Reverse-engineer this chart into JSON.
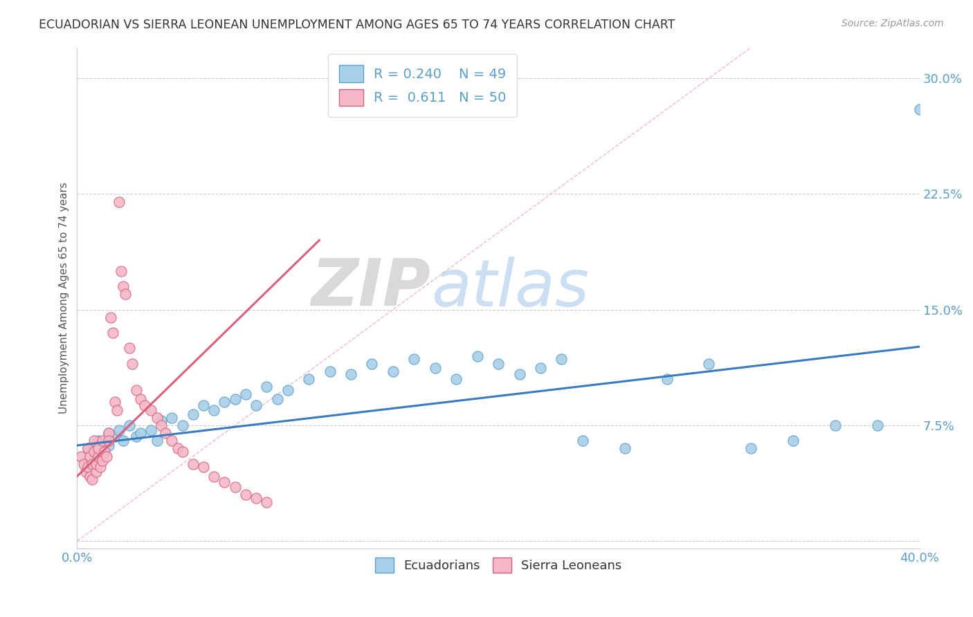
{
  "title": "ECUADORIAN VS SIERRA LEONEAN UNEMPLOYMENT AMONG AGES 65 TO 74 YEARS CORRELATION CHART",
  "source": "Source: ZipAtlas.com",
  "ylabel": "Unemployment Among Ages 65 to 74 years",
  "xlim": [
    0.0,
    0.4
  ],
  "ylim": [
    -0.005,
    0.32
  ],
  "yticks": [
    0.0,
    0.075,
    0.15,
    0.225,
    0.3
  ],
  "yticklabels": [
    "",
    "7.5%",
    "15.0%",
    "22.5%",
    "30.0%"
  ],
  "watermark_zip": "ZIP",
  "watermark_atlas": "atlas",
  "legend_r1": "R = 0.240",
  "legend_n1": "N = 49",
  "legend_r2": "R =  0.611",
  "legend_n2": "N = 50",
  "blue_color": "#a8cfe8",
  "blue_edge": "#5a9ec9",
  "pink_color": "#f4b8c8",
  "pink_edge": "#d9607a",
  "trend_blue": "#3a7abf",
  "trend_pink": "#d9607a",
  "ref_line_color": "#f4b8c8",
  "background_color": "#ffffff",
  "title_color": "#333333",
  "axis_label_color": "#5a9ec9",
  "blue_scatter_x": [
    0.005,
    0.008,
    0.01,
    0.012,
    0.015,
    0.015,
    0.018,
    0.02,
    0.022,
    0.025,
    0.028,
    0.03,
    0.035,
    0.038,
    0.04,
    0.045,
    0.05,
    0.055,
    0.06,
    0.065,
    0.07,
    0.075,
    0.08,
    0.085,
    0.09,
    0.095,
    0.1,
    0.11,
    0.12,
    0.13,
    0.14,
    0.15,
    0.16,
    0.17,
    0.18,
    0.19,
    0.2,
    0.21,
    0.22,
    0.23,
    0.24,
    0.26,
    0.28,
    0.3,
    0.32,
    0.34,
    0.36,
    0.38,
    0.4
  ],
  "blue_scatter_y": [
    0.06,
    0.055,
    0.065,
    0.058,
    0.062,
    0.07,
    0.068,
    0.072,
    0.065,
    0.075,
    0.068,
    0.07,
    0.072,
    0.065,
    0.078,
    0.08,
    0.075,
    0.082,
    0.088,
    0.085,
    0.09,
    0.092,
    0.095,
    0.088,
    0.1,
    0.092,
    0.098,
    0.105,
    0.11,
    0.108,
    0.115,
    0.11,
    0.118,
    0.112,
    0.105,
    0.12,
    0.115,
    0.108,
    0.112,
    0.118,
    0.065,
    0.06,
    0.105,
    0.115,
    0.06,
    0.065,
    0.075,
    0.075,
    0.28
  ],
  "pink_scatter_x": [
    0.002,
    0.003,
    0.004,
    0.005,
    0.005,
    0.006,
    0.006,
    0.007,
    0.007,
    0.008,
    0.008,
    0.009,
    0.009,
    0.01,
    0.01,
    0.011,
    0.012,
    0.012,
    0.013,
    0.014,
    0.015,
    0.015,
    0.016,
    0.017,
    0.018,
    0.019,
    0.02,
    0.021,
    0.022,
    0.023,
    0.025,
    0.026,
    0.028,
    0.03,
    0.032,
    0.035,
    0.038,
    0.04,
    0.042,
    0.045,
    0.048,
    0.05,
    0.055,
    0.06,
    0.065,
    0.07,
    0.075,
    0.08,
    0.085,
    0.09
  ],
  "pink_scatter_y": [
    0.055,
    0.05,
    0.045,
    0.06,
    0.048,
    0.042,
    0.055,
    0.05,
    0.04,
    0.065,
    0.058,
    0.045,
    0.05,
    0.055,
    0.06,
    0.048,
    0.052,
    0.065,
    0.058,
    0.055,
    0.07,
    0.065,
    0.145,
    0.135,
    0.09,
    0.085,
    0.22,
    0.175,
    0.165,
    0.16,
    0.125,
    0.115,
    0.098,
    0.092,
    0.088,
    0.085,
    0.08,
    0.075,
    0.07,
    0.065,
    0.06,
    0.058,
    0.05,
    0.048,
    0.042,
    0.038,
    0.035,
    0.03,
    0.028,
    0.025
  ],
  "blue_trend_x": [
    0.0,
    0.4
  ],
  "blue_trend_y_start": 0.062,
  "blue_trend_y_end": 0.126,
  "pink_trend_x": [
    0.0,
    0.115
  ],
  "pink_trend_y_start": 0.042,
  "pink_trend_y_end": 0.195,
  "ref_line_x": [
    0.0,
    0.32
  ],
  "ref_line_y": [
    0.0,
    0.32
  ]
}
